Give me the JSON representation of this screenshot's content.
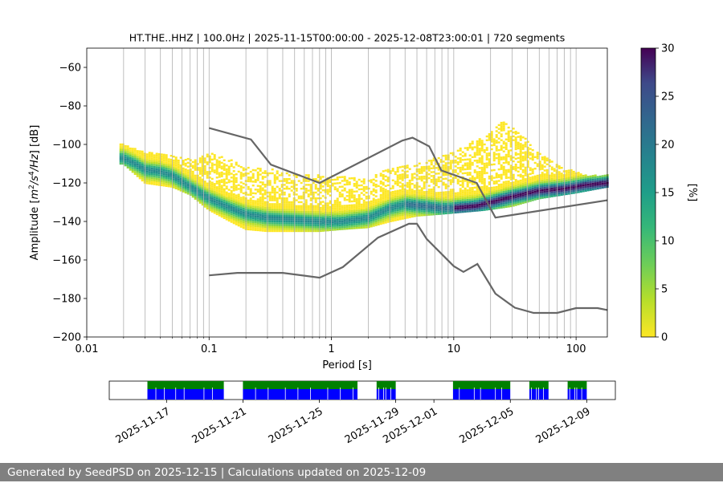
{
  "chart_data": [
    {
      "type": "heatmap",
      "title": "HT.THE..HHZ | 100.0Hz | 2025-11-15T00:00:00 - 2025-12-08T23:00:01 | 720 segments",
      "xlabel": "Period [s]",
      "ylabel": "Amplitude [m²/s⁴/Hz] [dB]",
      "xscale": "log",
      "xlim": [
        0.01,
        180
      ],
      "ylim": [
        -200,
        -50
      ],
      "xticks": [
        0.01,
        0.1,
        1,
        10,
        100
      ],
      "xtick_labels": [
        "0.01",
        "0.1",
        "1",
        "10",
        "100"
      ],
      "yticks": [
        -200,
        -180,
        -160,
        -140,
        -120,
        -100,
        -80,
        -60
      ],
      "ytick_labels": [
        "−200",
        "−180",
        "−160",
        "−140",
        "−120",
        "−100",
        "−80",
        "−60"
      ],
      "grid": "vertical minor log lines",
      "colorbar": {
        "label": "[%]",
        "range": [
          0,
          30
        ],
        "ticks": [
          0,
          5,
          10,
          15,
          20,
          25,
          30
        ],
        "tick_labels": [
          "0",
          "5",
          "10",
          "15",
          "20",
          "25",
          "30"
        ],
        "colormap": "viridis (reversed)"
      },
      "ridge_mode": [
        [
          0.02,
          -107
        ],
        [
          0.025,
          -110
        ],
        [
          0.03,
          -113
        ],
        [
          0.04,
          -114
        ],
        [
          0.05,
          -116
        ],
        [
          0.07,
          -122
        ],
        [
          0.1,
          -128
        ],
        [
          0.15,
          -133
        ],
        [
          0.2,
          -136
        ],
        [
          0.3,
          -138
        ],
        [
          0.5,
          -139
        ],
        [
          0.8,
          -140
        ],
        [
          1.2,
          -140
        ],
        [
          2,
          -138
        ],
        [
          3,
          -133
        ],
        [
          4,
          -131
        ],
        [
          6,
          -132
        ],
        [
          8,
          -133
        ],
        [
          10,
          -133
        ],
        [
          15,
          -132
        ],
        [
          20,
          -130
        ],
        [
          30,
          -127
        ],
        [
          50,
          -124
        ],
        [
          80,
          -123
        ],
        [
          120,
          -121
        ],
        [
          180,
          -120
        ]
      ],
      "cloud_upper": [
        [
          0.02,
          -100
        ],
        [
          0.03,
          -104
        ],
        [
          0.05,
          -106
        ],
        [
          0.08,
          -108
        ],
        [
          0.1,
          -104
        ],
        [
          0.15,
          -108
        ],
        [
          0.2,
          -112
        ],
        [
          0.3,
          -112
        ],
        [
          0.5,
          -116
        ],
        [
          1,
          -116
        ],
        [
          2,
          -118
        ],
        [
          3,
          -112
        ],
        [
          5,
          -110
        ],
        [
          8,
          -106
        ],
        [
          12,
          -100
        ],
        [
          18,
          -96
        ],
        [
          25,
          -88
        ],
        [
          35,
          -94
        ],
        [
          50,
          -104
        ],
        [
          80,
          -112
        ],
        [
          120,
          -116
        ],
        [
          180,
          -116
        ]
      ],
      "cloud_lower": [
        [
          0.02,
          -110
        ],
        [
          0.03,
          -120
        ],
        [
          0.05,
          -122
        ],
        [
          0.07,
          -126
        ],
        [
          0.1,
          -134
        ],
        [
          0.15,
          -140
        ],
        [
          0.2,
          -144
        ],
        [
          0.3,
          -145
        ],
        [
          0.5,
          -145
        ],
        [
          0.8,
          -145
        ],
        [
          1.2,
          -144
        ],
        [
          2,
          -143
        ],
        [
          3,
          -140
        ],
        [
          5,
          -137
        ],
        [
          8,
          -136
        ],
        [
          12,
          -135
        ],
        [
          18,
          -134
        ],
        [
          30,
          -132
        ],
        [
          50,
          -128
        ],
        [
          100,
          -125
        ],
        [
          180,
          -122
        ]
      ],
      "reference_curves": [
        {
          "name": "upper reference",
          "points": [
            [
              0.1,
              -91.5
            ],
            [
              0.22,
              -97.4
            ],
            [
              0.32,
              -110.5
            ],
            [
              0.8,
              -120
            ],
            [
              3.8,
              -98
            ],
            [
              4.6,
              -96.5
            ],
            [
              6.3,
              -101
            ],
            [
              7.9,
              -113.5
            ],
            [
              15.4,
              -120
            ],
            [
              21.9,
              -138
            ],
            [
              180,
              -129
            ]
          ]
        },
        {
          "name": "lower reference",
          "points": [
            [
              0.1,
              -168
            ],
            [
              0.17,
              -166.7
            ],
            [
              0.4,
              -166.7
            ],
            [
              0.8,
              -169.2
            ],
            [
              1.24,
              -163.7
            ],
            [
              2.4,
              -148.4
            ],
            [
              4.3,
              -141.2
            ],
            [
              5.0,
              -141.2
            ],
            [
              6.0,
              -149.1
            ],
            [
              10,
              -163.2
            ],
            [
              12,
              -166.2
            ],
            [
              15.6,
              -162.1
            ],
            [
              21.9,
              -177.5
            ],
            [
              31.6,
              -184.8
            ],
            [
              45,
              -187.5
            ],
            [
              70,
              -187.5
            ],
            [
              100,
              -185
            ],
            [
              150,
              -185
            ],
            [
              180,
              -186
            ]
          ]
        }
      ]
    },
    {
      "type": "timeline",
      "xtick_labels": [
        "2025-11-17",
        "2025-11-21",
        "2025-11-25",
        "2025-11-29",
        "2025-12-01",
        "2025-12-05",
        "2025-12-09"
      ],
      "data_availability_periods": [
        {
          "start": "2025-11-16",
          "end": "2025-11-20"
        },
        {
          "start": "2025-11-21",
          "end": "2025-11-27"
        },
        {
          "start": "2025-11-28",
          "end": "2025-11-29"
        },
        {
          "start": "2025-12-02",
          "end": "2025-12-05"
        },
        {
          "start": "2025-12-06",
          "end": "2025-12-07"
        },
        {
          "start": "2025-12-08",
          "end": "2025-12-09"
        }
      ],
      "bar_colors": {
        "top": "#008000",
        "bottom": "#0000ff"
      }
    }
  ],
  "footer": {
    "text": "Generated by SeedPSD on 2025-12-15 | Calculations updated on 2025-12-09"
  }
}
